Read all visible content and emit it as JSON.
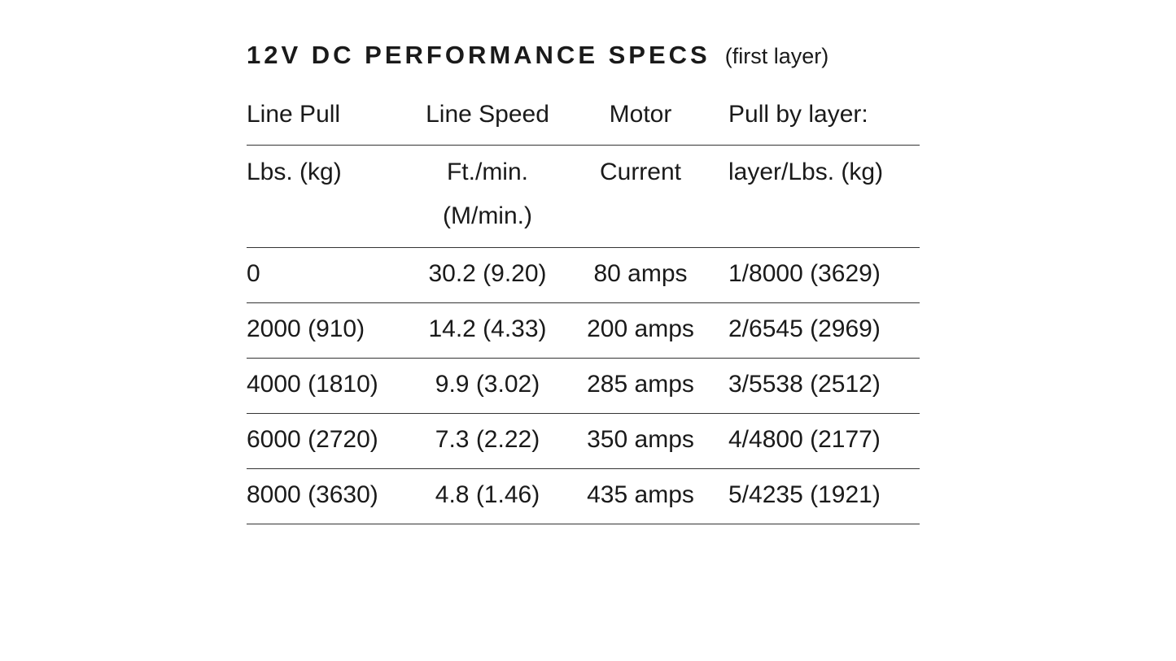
{
  "title": "12V DC PERFORMANCE SPECS",
  "subtitle": "(first layer)",
  "table": {
    "header_top": [
      "Line Pull",
      "Line Speed",
      "Motor",
      "Pull by layer:"
    ],
    "header_bottom": [
      "Lbs. (kg)",
      "Ft./min.\n(M/min.)",
      "Current",
      "layer/Lbs. (kg)"
    ],
    "rows": [
      [
        "0",
        "30.2 (9.20)",
        "80 amps",
        "1/8000 (3629)"
      ],
      [
        "2000 (910)",
        "14.2 (4.33)",
        "200 amps",
        "2/6545 (2969)"
      ],
      [
        "4000 (1810)",
        "9.9 (3.02)",
        "285 amps",
        "3/5538 (2512)"
      ],
      [
        "6000 (2720)",
        "7.3 (2.22)",
        "350 amps",
        "4/4800 (2177)"
      ],
      [
        "8000 (3630)",
        "4.8 (1.46)",
        "435 amps",
        "5/4235 (1921)"
      ]
    ]
  }
}
